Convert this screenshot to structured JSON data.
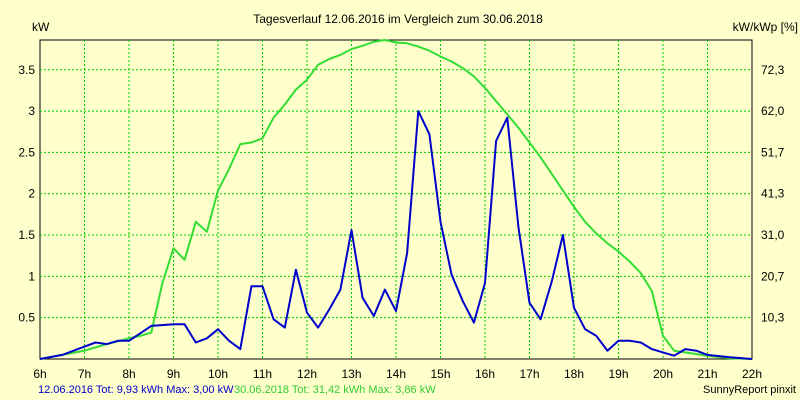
{
  "chart_data": {
    "type": "line",
    "title": "Tagesverlauf 12.06.2016 im Vergleich zum 30.06.2018",
    "y_left_unit": "kW",
    "y_right_unit": "kW/kWp [%]",
    "x_ticks": [
      "6h",
      "7h",
      "8h",
      "9h",
      "10h",
      "11h",
      "12h",
      "13h",
      "14h",
      "15h",
      "16h",
      "17h",
      "18h",
      "19h",
      "20h",
      "21h",
      "22h"
    ],
    "y_left_ticks": [
      "0.5",
      "1",
      "1.5",
      "2",
      "2.5",
      "3",
      "3.5"
    ],
    "y_right_ticks": [
      "10,3",
      "20,7",
      "31,0",
      "41,3",
      "51,7",
      "62,0",
      "72,3"
    ],
    "xlim": [
      6,
      22
    ],
    "ylim": [
      0,
      3.86
    ],
    "grid": true,
    "series": [
      {
        "name": "12.06.2016",
        "color": "#0000cc",
        "x": [
          6.0,
          6.5,
          7.0,
          7.25,
          7.5,
          7.75,
          8.0,
          8.5,
          9.0,
          9.25,
          9.5,
          9.75,
          10.0,
          10.25,
          10.5,
          10.75,
          11.0,
          11.25,
          11.5,
          11.75,
          12.0,
          12.25,
          12.5,
          12.75,
          13.0,
          13.25,
          13.5,
          13.75,
          14.0,
          14.25,
          14.5,
          14.75,
          15.0,
          15.25,
          15.5,
          15.75,
          16.0,
          16.25,
          16.5,
          16.75,
          17.0,
          17.25,
          17.5,
          17.75,
          18.0,
          18.25,
          18.5,
          18.75,
          19.0,
          19.25,
          19.5,
          19.75,
          20.0,
          20.25,
          20.5,
          20.75,
          21.0,
          21.5,
          22.0
        ],
        "y": [
          0,
          0.05,
          0.15,
          0.2,
          0.18,
          0.22,
          0.22,
          0.4,
          0.42,
          0.42,
          0.2,
          0.25,
          0.36,
          0.22,
          0.12,
          0.88,
          0.88,
          0.48,
          0.38,
          1.08,
          0.56,
          0.38,
          0.6,
          0.84,
          1.56,
          0.74,
          0.52,
          0.84,
          0.58,
          1.28,
          3.0,
          2.72,
          1.66,
          1.02,
          0.7,
          0.44,
          0.92,
          2.64,
          2.92,
          1.6,
          0.68,
          0.48,
          0.94,
          1.5,
          0.62,
          0.36,
          0.28,
          0.1,
          0.22,
          0.22,
          0.2,
          0.12,
          0.08,
          0.04,
          0.12,
          0.1,
          0.05,
          0.02,
          0
        ]
      },
      {
        "name": "30.06.2018",
        "color": "#33dd33",
        "x": [
          6.0,
          7.0,
          7.5,
          8.0,
          8.25,
          8.5,
          8.75,
          9.0,
          9.25,
          9.5,
          9.75,
          10.0,
          10.25,
          10.5,
          10.75,
          11.0,
          11.25,
          11.5,
          11.75,
          12.0,
          12.25,
          12.5,
          12.75,
          13.0,
          13.25,
          13.5,
          13.75,
          14.0,
          14.25,
          14.5,
          14.75,
          15.0,
          15.25,
          15.5,
          15.75,
          16.0,
          16.25,
          16.5,
          16.75,
          17.0,
          17.25,
          17.5,
          17.75,
          18.0,
          18.25,
          18.5,
          18.75,
          19.0,
          19.25,
          19.5,
          19.75,
          20.0,
          20.25,
          20.5,
          21.0,
          21.5,
          22.0
        ],
        "y": [
          0,
          0.1,
          0.18,
          0.25,
          0.28,
          0.32,
          0.92,
          1.34,
          1.2,
          1.66,
          1.54,
          2.04,
          2.3,
          2.6,
          2.62,
          2.67,
          2.92,
          3.08,
          3.26,
          3.38,
          3.56,
          3.63,
          3.68,
          3.75,
          3.79,
          3.84,
          3.86,
          3.83,
          3.82,
          3.78,
          3.73,
          3.66,
          3.6,
          3.52,
          3.42,
          3.28,
          3.12,
          2.96,
          2.8,
          2.62,
          2.44,
          2.24,
          2.04,
          1.84,
          1.66,
          1.52,
          1.4,
          1.3,
          1.18,
          1.04,
          0.82,
          0.28,
          0.1,
          0.08,
          0.04,
          0.01,
          0
        ]
      }
    ]
  },
  "legend": {
    "series1_label": "12.06.2016 Tot: 9,93 kWh Max: 3,00 kW",
    "series2_label": "30.06.2018 Tot: 31,42 kWh Max: 3,86 kW",
    "credit": "SunnyReport pinxit"
  }
}
